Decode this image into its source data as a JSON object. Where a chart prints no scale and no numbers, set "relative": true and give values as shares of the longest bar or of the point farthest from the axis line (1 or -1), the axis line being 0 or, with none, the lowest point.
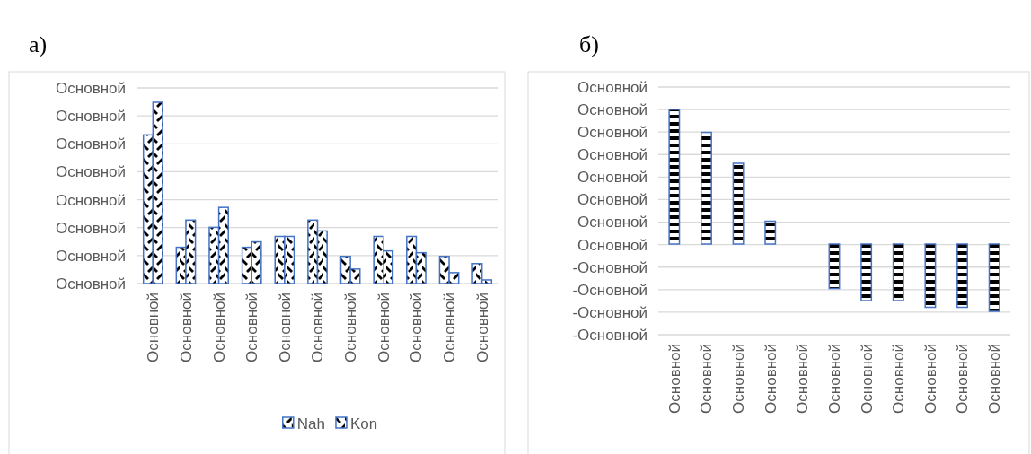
{
  "chart_data": [
    {
      "type": "bar",
      "title": "а)",
      "categories": [
        "Основной",
        "Основной",
        "Основной",
        "Основной",
        "Основной",
        "Основной",
        "Основной",
        "Основной",
        "Основной",
        "Основной",
        "Основной"
      ],
      "series": [
        {
          "name": "Nah",
          "color": "#4472c4",
          "values": [
            0.82,
            0.2,
            0.31,
            0.2,
            0.26,
            0.35,
            0.15,
            0.26,
            0.26,
            0.15,
            0.11
          ]
        },
        {
          "name": "Kon",
          "color": "#4472c4",
          "values": [
            1,
            0.35,
            0.42,
            0.23,
            0.26,
            0.29,
            0.08,
            0.18,
            0.17,
            0.06,
            0.02
          ]
        }
      ],
      "relative": true,
      "annotations": [
        "Основной",
        "Основной",
        "Основной",
        "Основной",
        "Основной",
        "Основной",
        "Основной",
        "Основной"
      ],
      "grid": true,
      "legend": "bottom"
    },
    {
      "type": "bar",
      "title": "б)",
      "categories": [
        "Основной",
        "Основной",
        "Основной",
        "Основной",
        "Основной",
        "Основной",
        "Основной",
        "Основной",
        "Основной",
        "Основной",
        "Основной"
      ],
      "series": [
        {
          "color": "#4472c4",
          "values": [
            1,
            0.83,
            0.6,
            0.17,
            0,
            -0.33,
            -0.42,
            -0.42,
            -0.47,
            -0.47,
            -0.5
          ]
        }
      ],
      "relative": true,
      "annotations": [
        "Основной",
        "Основной",
        "Основной",
        "Основной",
        "Основной",
        "Основной",
        "Основной",
        "Основной",
        "-Основной",
        "-Основной",
        "-Основной",
        "-Основной"
      ],
      "grid": true
    }
  ]
}
